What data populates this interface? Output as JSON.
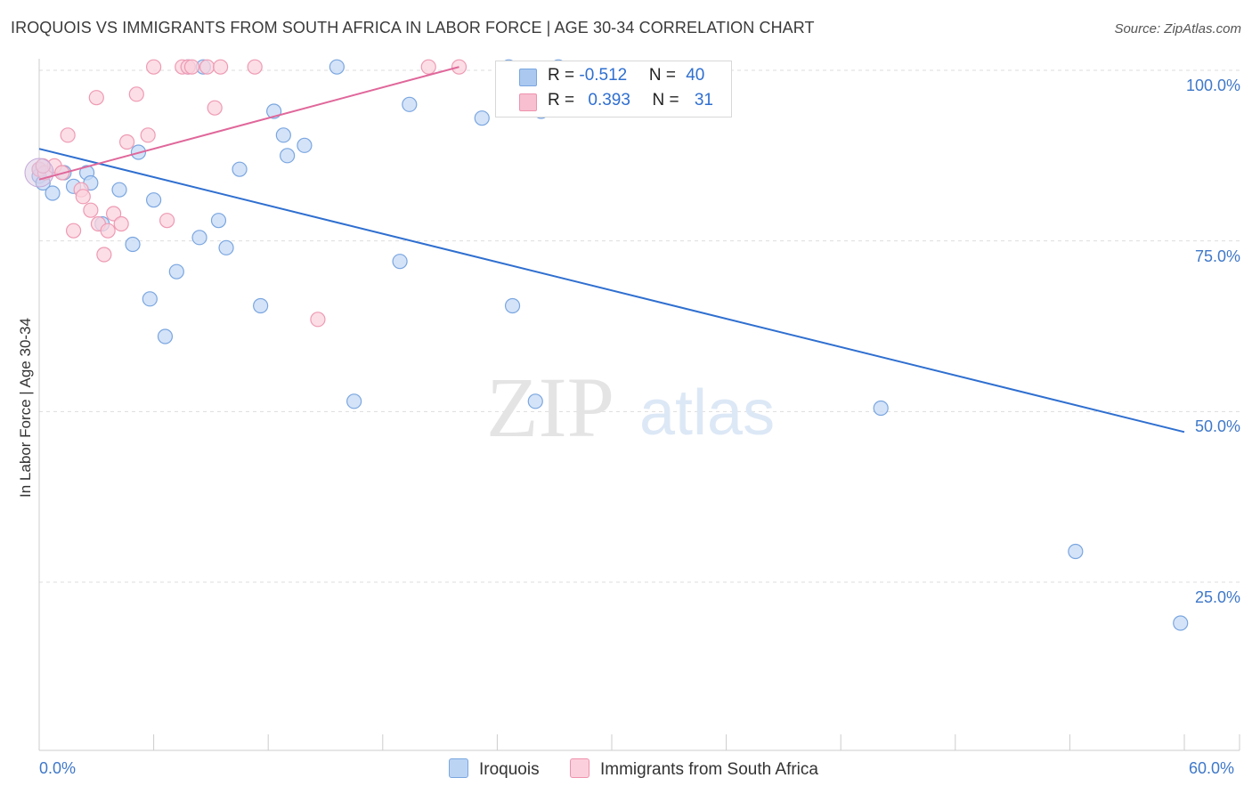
{
  "title": "IROQUOIS VS IMMIGRANTS FROM SOUTH AFRICA IN LABOR FORCE | AGE 30-34 CORRELATION CHART",
  "source": "Source: ZipAtlas.com",
  "watermark": {
    "zip": "ZIP",
    "atlas": "atlas"
  },
  "legend_top": [
    {
      "r_label": "R = ",
      "r_value": "-0.512",
      "n_label": "N = ",
      "n_value": "40",
      "color": "#aac8f0",
      "border": "#7aa6e0"
    },
    {
      "r_label": "R = ",
      "r_value": "0.393",
      "n_label": "N = ",
      "n_value": "31",
      "color": "#f8bfd0",
      "border": "#ee92ae"
    }
  ],
  "legend_bottom": [
    {
      "label": "Iroquois",
      "color": "#bcd4f4",
      "border": "#7aa6e0"
    },
    {
      "label": "Immigrants from South Africa",
      "color": "#fbd0dc",
      "border": "#ee92ae"
    }
  ],
  "colors": {
    "blue_line": "#2f6fd0",
    "pink_line": "#e0679a",
    "axis_text": "#3f78c9",
    "grid": "#dddddd"
  },
  "chart_data": {
    "type": "scatter",
    "title": "IROQUOIS VS IMMIGRANTS FROM SOUTH AFRICA IN LABOR FORCE | AGE 30-34 CORRELATION CHART",
    "xlabel": "",
    "ylabel": "In Labor Force | Age 30-34",
    "xlim": [
      0,
      60
    ],
    "ylim": [
      0,
      105
    ],
    "x_tick_labels": [
      "0.0%",
      "60.0%"
    ],
    "y_tick_labels": [
      "100.0%",
      "75.0%",
      "50.0%",
      "25.0%"
    ],
    "y_ticks": [
      100,
      75,
      50,
      25
    ],
    "grid": true,
    "series": [
      {
        "name": "Iroquois",
        "trend": {
          "x": [
            0,
            60
          ],
          "y": [
            88.5,
            47.0
          ]
        },
        "points": [
          [
            0.0,
            85.5
          ],
          [
            0.0,
            84.5
          ],
          [
            0.2,
            83.5
          ],
          [
            0.7,
            82.0
          ],
          [
            1.3,
            85.0
          ],
          [
            1.8,
            83.0
          ],
          [
            2.5,
            85.0
          ],
          [
            2.7,
            83.5
          ],
          [
            3.3,
            77.5
          ],
          [
            4.2,
            82.5
          ],
          [
            4.9,
            74.5
          ],
          [
            5.2,
            88.0
          ],
          [
            5.8,
            66.5
          ],
          [
            6.0,
            81.0
          ],
          [
            6.6,
            61.0
          ],
          [
            7.2,
            70.5
          ],
          [
            7.8,
            100.5
          ],
          [
            8.4,
            75.5
          ],
          [
            8.6,
            100.5
          ],
          [
            9.4,
            78.0
          ],
          [
            9.8,
            74.0
          ],
          [
            10.5,
            85.5
          ],
          [
            11.6,
            65.5
          ],
          [
            12.3,
            94.0
          ],
          [
            12.8,
            90.5
          ],
          [
            13.0,
            87.5
          ],
          [
            13.9,
            89.0
          ],
          [
            15.6,
            100.5
          ],
          [
            16.5,
            51.5
          ],
          [
            18.9,
            72.0
          ],
          [
            19.4,
            95.0
          ],
          [
            23.2,
            93.0
          ],
          [
            24.6,
            100.5
          ],
          [
            24.8,
            65.5
          ],
          [
            26.0,
            51.5
          ],
          [
            26.3,
            94.0
          ],
          [
            27.2,
            100.5
          ],
          [
            44.1,
            50.5
          ],
          [
            54.3,
            29.5
          ],
          [
            59.8,
            19.0
          ]
        ]
      },
      {
        "name": "Immigrants from South Africa",
        "trend": {
          "x": [
            0,
            22
          ],
          "y": [
            84.0,
            100.5
          ]
        },
        "points": [
          [
            0.0,
            85.5
          ],
          [
            0.3,
            85.0
          ],
          [
            0.8,
            86.0
          ],
          [
            1.2,
            85.0
          ],
          [
            1.5,
            90.5
          ],
          [
            1.8,
            76.5
          ],
          [
            2.2,
            82.5
          ],
          [
            2.3,
            81.5
          ],
          [
            2.7,
            79.5
          ],
          [
            3.0,
            96.0
          ],
          [
            3.1,
            77.5
          ],
          [
            3.4,
            73.0
          ],
          [
            3.6,
            76.5
          ],
          [
            3.9,
            79.0
          ],
          [
            4.3,
            77.5
          ],
          [
            4.6,
            89.5
          ],
          [
            5.1,
            96.5
          ],
          [
            5.7,
            90.5
          ],
          [
            6.0,
            100.5
          ],
          [
            6.7,
            78.0
          ],
          [
            7.5,
            100.5
          ],
          [
            7.8,
            100.5
          ],
          [
            8.0,
            100.5
          ],
          [
            8.8,
            100.5
          ],
          [
            9.2,
            94.5
          ],
          [
            9.5,
            100.5
          ],
          [
            11.3,
            100.5
          ],
          [
            14.6,
            63.5
          ],
          [
            20.4,
            100.5
          ],
          [
            22.0,
            100.5
          ],
          [
            0.2,
            86.0
          ]
        ]
      }
    ]
  }
}
